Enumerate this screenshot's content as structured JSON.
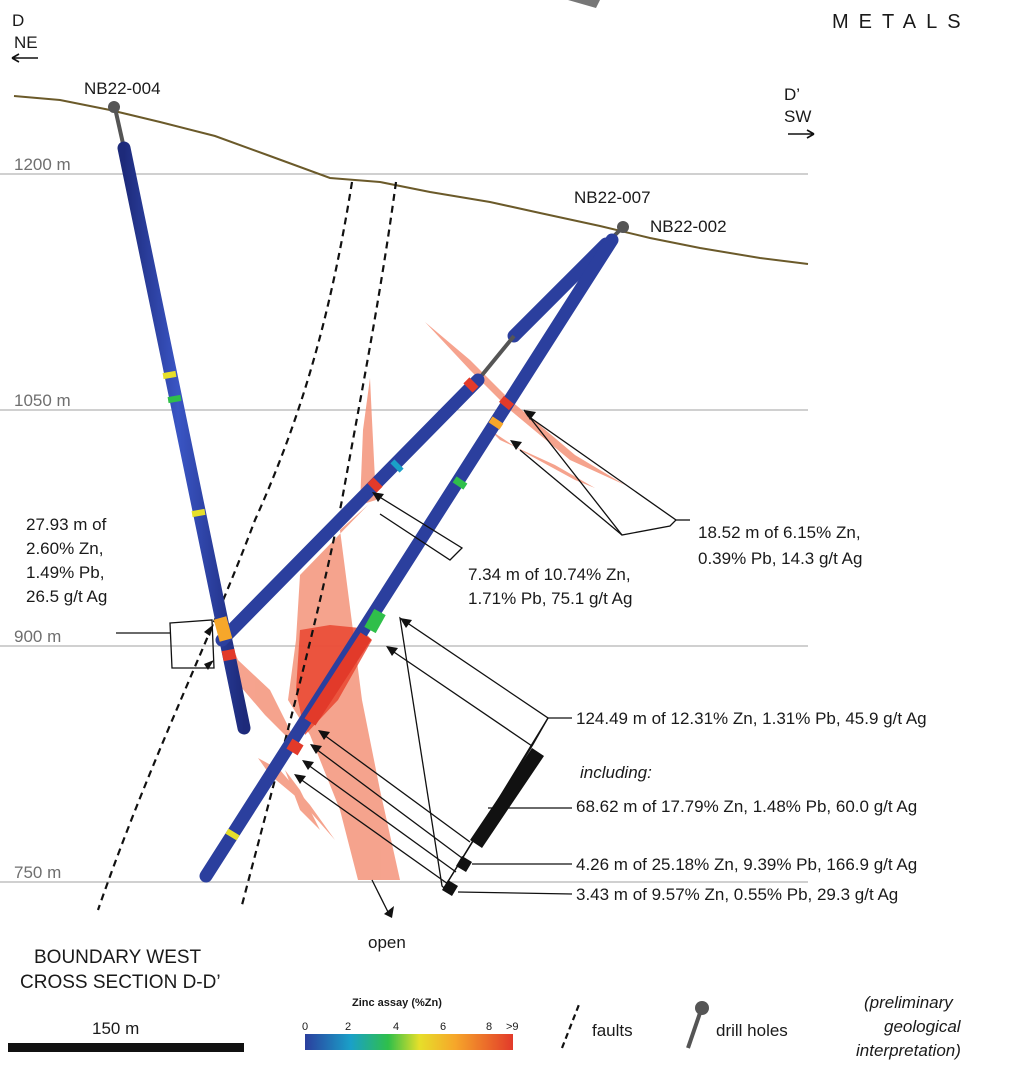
{
  "corner": {
    "left_letter": "D",
    "left_direction": "NE",
    "right_letter": "D’",
    "right_direction": "SW",
    "logo_text": "METALS"
  },
  "elevations": [
    "1200 m",
    "1050 m",
    "900 m",
    "750 m"
  ],
  "drill_holes": [
    "NB22-004",
    "NB22-007",
    "NB22-002"
  ],
  "intercepts": {
    "a": "18.52 m of 6.15% Zn,",
    "b": "0.39% Pb, 14.3 g/t Ag",
    "c": "7.34 m of 10.74% Zn,",
    "d": "1.71% Pb, 75.1 g/t Ag",
    "e": "27.93 m of",
    "f": "2.60% Zn,",
    "g": "1.49% Pb,",
    "h": "26.5 g/t Ag",
    "i": "124.49 m of 12.31% Zn, 1.31% Pb, 45.9 g/t Ag",
    "j": "including:",
    "k": "68.62 m of 17.79% Zn, 1.48% Pb, 60.0 g/t Ag",
    "l": "4.26 m of 25.18% Zn, 9.39% Pb, 166.9 g/t Ag",
    "m": "3.43 m of 9.57% Zn, 0.55% Pb, 29.3 g/t Ag"
  },
  "open_label": "open",
  "title": {
    "line1": "BOUNDARY WEST",
    "line2": "CROSS SECTION D-D’"
  },
  "scale_bar": "150 m",
  "legend": {
    "colorbar_title": "Zinc assay (%Zn)",
    "ticks": [
      "0",
      "2",
      "4",
      "6",
      "8",
      ">9"
    ],
    "faults": "faults",
    "drill_holes": "drill holes",
    "note1": "(preliminary",
    "note2": "geological",
    "note3": "interpretation)"
  },
  "colors": {
    "topography": "#6b5a2a",
    "drill_hole": "#2b3f9e",
    "mineralization": "#f4937a",
    "high_grade": "#e8402a",
    "gridline": "#b4b4b4"
  }
}
